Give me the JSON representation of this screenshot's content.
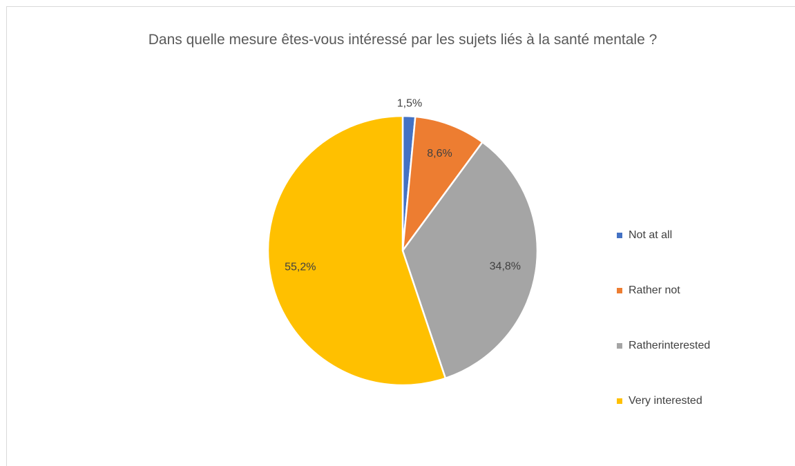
{
  "chart_data": {
    "type": "pie",
    "title": "Dans quelle mesure êtes-vous intéressé par les sujets liés à la santé mentale ?",
    "categories": [
      "Not at all",
      "Rather not",
      "Ratherinterested",
      "Very interested"
    ],
    "values": [
      1.5,
      8.6,
      34.8,
      55.2
    ],
    "value_labels": [
      "1,5%",
      "8,6%",
      "34,8%",
      "55,2%"
    ],
    "colors": [
      "#4472c4",
      "#ed7d31",
      "#a5a5a5",
      "#ffc000"
    ],
    "legend": "right"
  }
}
